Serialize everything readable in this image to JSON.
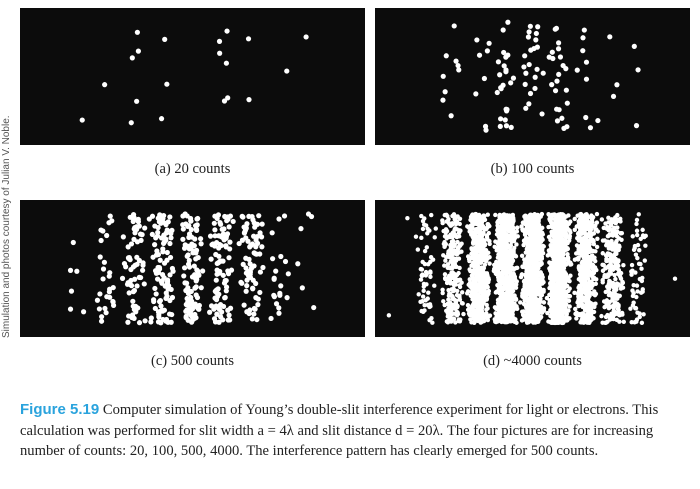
{
  "credit": "Simulation and photos courtesy of Julian V. Noble.",
  "panels": [
    {
      "label": "(a) 20 counts",
      "counts": 20
    },
    {
      "label": "(b) 100 counts",
      "counts": 100
    },
    {
      "label": "(c) 500 counts",
      "counts": 500
    },
    {
      "label": "(d) ~4000 counts",
      "counts": 4000
    }
  ],
  "caption": {
    "figure_label": "Figure 5.19",
    "text": " Computer simulation of Young’s double-slit interference experiment for light or electrons. This calculation was performed for slit width a = 4λ and slit distance d = 20λ. The four pictures are for increasing number of counts: 20, 100, 500, 4000. The interference pattern has clearly emerged for 500 counts."
  },
  "colors": {
    "background": "#0c0c0c",
    "dot": "#ffffff",
    "figure_label": "#2aa3dd"
  }
}
